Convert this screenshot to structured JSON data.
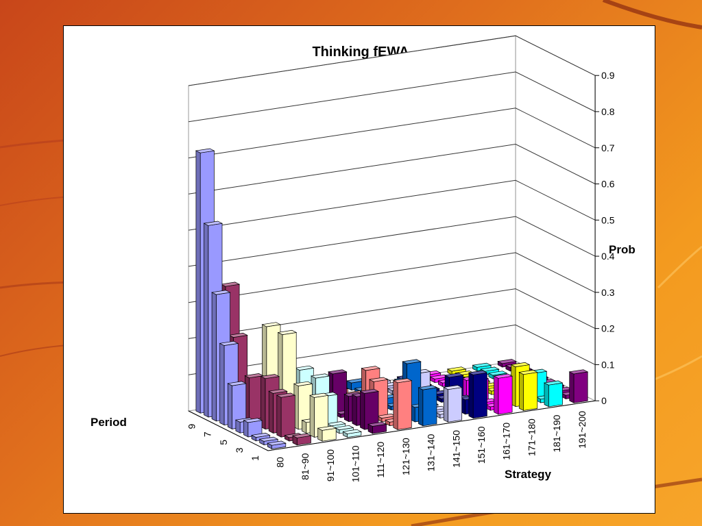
{
  "chart_data": {
    "type": "bar",
    "title": "Thinking fEWA",
    "zlabel": "Prob",
    "xlabel": "Strategy",
    "ylabel": "Period",
    "zlim": [
      0,
      0.9
    ],
    "z_ticks": [
      "0",
      "0.1",
      "0.2",
      "0.3",
      "0.4",
      "0.5",
      "0.6",
      "0.7",
      "0.8",
      "0.9"
    ],
    "strategy_tick_labels": [
      "80",
      "81~90",
      "91~100",
      "101~110",
      "111~120",
      "121~130",
      "131~140",
      "141~150",
      "151~160",
      "161~170",
      "171~180",
      "181~190",
      "191~200"
    ],
    "period_tick_labels": [
      "1",
      "3",
      "5",
      "7",
      "9"
    ],
    "periods": [
      1,
      2,
      3,
      4,
      5,
      6,
      7,
      8,
      9,
      10
    ],
    "strategies": [
      "80",
      "81~90",
      "91~100",
      "101~110",
      "111~120",
      "121~130",
      "131~140",
      "141~150",
      "151~160",
      "161~170",
      "171~180",
      "181~190",
      "191~200"
    ],
    "values": [
      [
        0.01,
        0.02,
        0.03,
        0.01,
        0.02,
        0.13,
        0.1,
        0.09,
        0.12,
        0.1,
        0.1,
        0.06,
        0.08
      ],
      [
        0.01,
        0.01,
        0.11,
        0.01,
        0.1,
        0.01,
        0.04,
        0.01,
        0.04,
        0.01,
        0.11,
        0.01,
        0.01
      ],
      [
        0.01,
        0.11,
        0.03,
        0.01,
        0.08,
        0.01,
        0.15,
        0.01,
        0.03,
        0.01,
        0.01,
        0.07,
        0.01
      ],
      [
        0.04,
        0.11,
        0.12,
        0.08,
        0.07,
        0.1,
        0.09,
        0.01,
        0.08,
        0.06,
        0.01,
        0.01,
        0.01
      ],
      [
        0.03,
        0.14,
        0.01,
        0.12,
        0.01,
        0.12,
        0.01,
        0.09,
        0.01,
        0.05,
        0.01,
        0.01,
        0.01
      ],
      [
        0.12,
        0.01,
        0.24,
        0.01,
        0.11,
        0.01,
        0.02,
        0.01,
        0.01,
        0.01,
        0.01,
        0.01,
        0.01
      ],
      [
        0.22,
        0.12,
        0.01,
        0.12,
        0.01,
        0.03,
        0.01,
        0.01,
        0.01,
        0.01,
        0.01,
        0.01,
        0.01
      ],
      [
        0.35,
        0.02,
        0.24,
        0.01,
        0.01,
        0.01,
        0.01,
        0.01,
        0.01,
        0.01,
        0.01,
        0.01,
        0.01
      ],
      [
        0.53,
        0.21,
        0.06,
        0.03,
        0.01,
        0.02,
        0.01,
        0.01,
        0.01,
        0.01,
        0.01,
        0.01,
        0.01
      ],
      [
        0.72,
        0.34,
        0.03,
        0.02,
        0.01,
        0.01,
        0.02,
        0.01,
        0.01,
        0.01,
        0.01,
        0.01,
        0.01
      ]
    ],
    "colors": [
      "#9999ff",
      "#993366",
      "#ffffcc",
      "#ccffff",
      "#660066",
      "#ff8080",
      "#0066cc",
      "#ccccff",
      "#000080",
      "#ff00ff",
      "#ffff00",
      "#00ffff",
      "#800080"
    ],
    "grid": true
  }
}
